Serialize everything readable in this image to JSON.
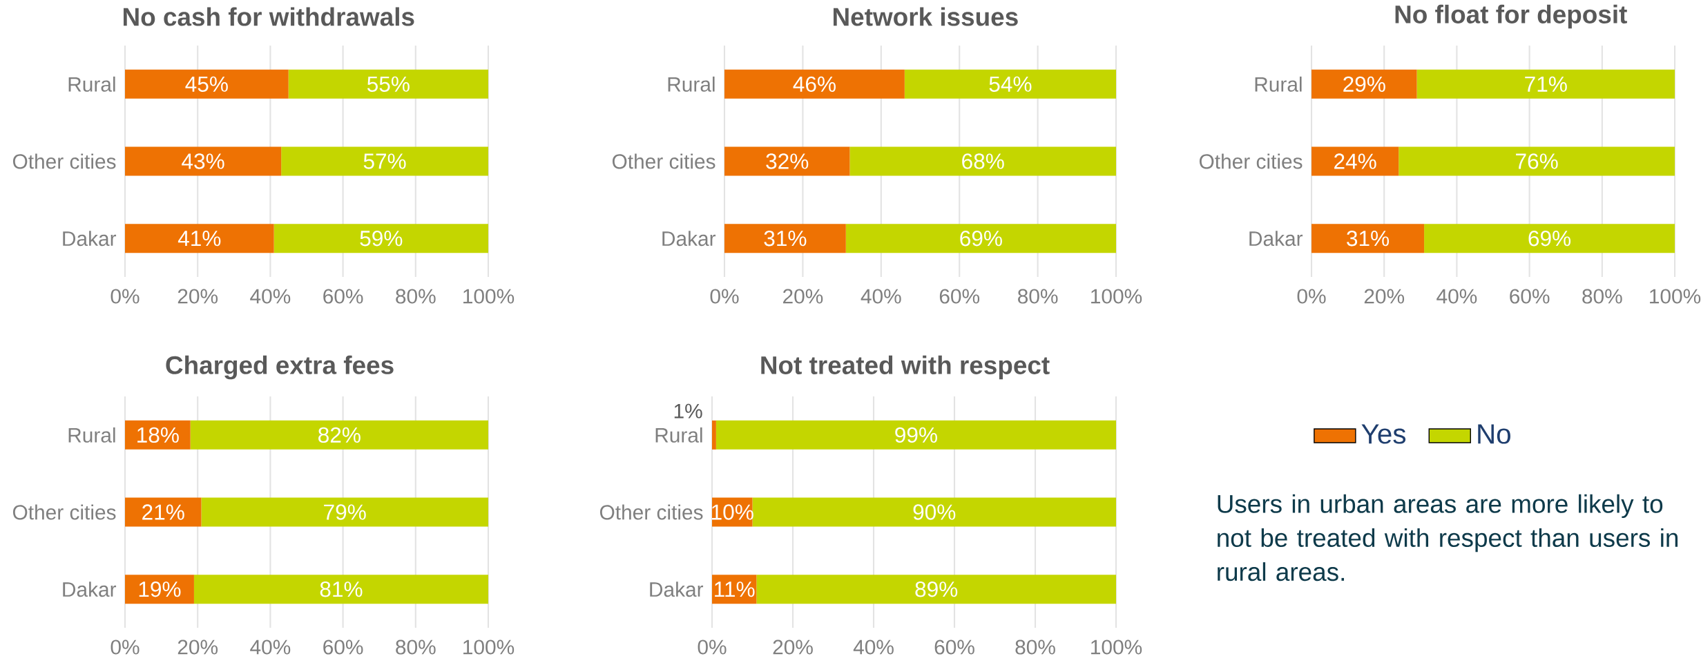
{
  "chart_data": [
    {
      "type": "bar",
      "orientation": "horizontal",
      "stacked": true,
      "title": "No cash for withdrawals",
      "categories": [
        "Rural",
        "Other cities",
        "Dakar"
      ],
      "xlim": [
        0,
        100
      ],
      "xticks": [
        {
          "value": 0,
          "label": "0%"
        },
        {
          "value": 20,
          "label": "20%"
        },
        {
          "value": 40,
          "label": "40%"
        },
        {
          "value": 60,
          "label": "60%"
        },
        {
          "value": 80,
          "label": "80%"
        },
        {
          "value": 100,
          "label": "100%"
        }
      ],
      "grid": "x",
      "series": [
        {
          "color": "#ee7203",
          "values": [
            45,
            43,
            41
          ],
          "value_labels": [
            "45%",
            "43%",
            "41%"
          ]
        },
        {
          "color": "#c4d600",
          "values": [
            55,
            57,
            59
          ],
          "value_labels": [
            "55%",
            "57%",
            "59%"
          ]
        }
      ]
    },
    {
      "type": "bar",
      "orientation": "horizontal",
      "stacked": true,
      "title": "Network issues",
      "categories": [
        "Rural",
        "Other cities",
        "Dakar"
      ],
      "xlim": [
        0,
        100
      ],
      "xticks": [
        {
          "value": 0,
          "label": "0%"
        },
        {
          "value": 20,
          "label": "20%"
        },
        {
          "value": 40,
          "label": "40%"
        },
        {
          "value": 60,
          "label": "60%"
        },
        {
          "value": 80,
          "label": "80%"
        },
        {
          "value": 100,
          "label": "100%"
        }
      ],
      "grid": "x",
      "series": [
        {
          "color": "#ee7203",
          "values": [
            46,
            32,
            31
          ],
          "value_labels": [
            "46%",
            "32%",
            "31%"
          ]
        },
        {
          "color": "#c4d600",
          "values": [
            54,
            68,
            69
          ],
          "value_labels": [
            "54%",
            "68%",
            "69%"
          ]
        }
      ]
    },
    {
      "type": "bar",
      "orientation": "horizontal",
      "stacked": true,
      "title": "No float for deposit",
      "categories": [
        "Rural",
        "Other cities",
        "Dakar"
      ],
      "xlim": [
        0,
        100
      ],
      "xticks": [
        {
          "value": 0,
          "label": "0%"
        },
        {
          "value": 20,
          "label": "20%"
        },
        {
          "value": 40,
          "label": "40%"
        },
        {
          "value": 60,
          "label": "60%"
        },
        {
          "value": 80,
          "label": "80%"
        },
        {
          "value": 100,
          "label": "100%"
        }
      ],
      "grid": "x",
      "series": [
        {
          "color": "#ee7203",
          "values": [
            29,
            24,
            31
          ],
          "value_labels": [
            "29%",
            "24%",
            "31%"
          ]
        },
        {
          "color": "#c4d600",
          "values": [
            71,
            76,
            69
          ],
          "value_labels": [
            "71%",
            "76%",
            "69%"
          ]
        }
      ]
    },
    {
      "type": "bar",
      "orientation": "horizontal",
      "stacked": true,
      "title": "Charged extra fees",
      "categories": [
        "Rural",
        "Other cities",
        "Dakar"
      ],
      "xlim": [
        0,
        100
      ],
      "xticks": [
        {
          "value": 0,
          "label": "0%"
        },
        {
          "value": 20,
          "label": "20%"
        },
        {
          "value": 40,
          "label": "40%"
        },
        {
          "value": 60,
          "label": "60%"
        },
        {
          "value": 80,
          "label": "80%"
        },
        {
          "value": 100,
          "label": "100%"
        }
      ],
      "grid": "x",
      "series": [
        {
          "color": "#ee7203",
          "values": [
            18,
            21,
            19
          ],
          "value_labels": [
            "18%",
            "21%",
            "19%"
          ]
        },
        {
          "color": "#c4d600",
          "values": [
            82,
            79,
            81
          ],
          "value_labels": [
            "82%",
            "79%",
            "81%"
          ]
        }
      ]
    },
    {
      "type": "bar",
      "orientation": "horizontal",
      "stacked": true,
      "title": "Not treated with respect",
      "categories": [
        "Rural",
        "Other cities",
        "Dakar"
      ],
      "xlim": [
        0,
        100
      ],
      "xticks": [
        {
          "value": 0,
          "label": "0%"
        },
        {
          "value": 20,
          "label": "20%"
        },
        {
          "value": 40,
          "label": "40%"
        },
        {
          "value": 60,
          "label": "60%"
        },
        {
          "value": 80,
          "label": "80%"
        },
        {
          "value": 100,
          "label": "100%"
        }
      ],
      "grid": "x",
      "legend": "right",
      "series": [
        {
          "name": "Yes",
          "color": "#ee7203",
          "values": [
            1,
            10,
            11
          ],
          "value_labels": [
            "1%",
            "10%",
            "11%"
          ]
        },
        {
          "name": "No",
          "color": "#c4d600",
          "values": [
            99,
            90,
            89
          ],
          "value_labels": [
            "99%",
            "90%",
            "89%"
          ]
        }
      ]
    },
    {
      "type": "other",
      "annotations": [
        "Users in urban areas are more likely to not be treated with respect than users in rural areas."
      ]
    }
  ]
}
